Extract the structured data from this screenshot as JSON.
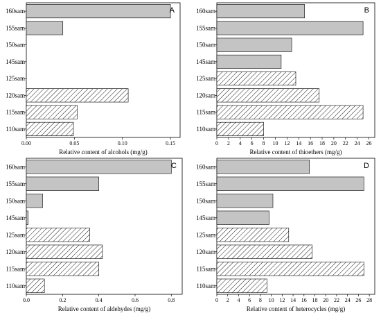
{
  "chart_data": [
    {
      "type": "bar",
      "orientation": "horizontal",
      "panel_label": "A",
      "categories": [
        "160sam",
        "155sam",
        "150sam",
        "145sam",
        "125sam",
        "120sam",
        "115sam",
        "110sam"
      ],
      "values": [
        0.15,
        0.038,
        0,
        0,
        0,
        0.106,
        0.053,
        0.049
      ],
      "xlabel": "Relative content of  alcohols (mg/g)",
      "xlim": [
        0,
        0.16
      ],
      "xticks": [
        0.0,
        0.05,
        0.1,
        0.15
      ],
      "xtick_labels": [
        "0.00",
        "0.05",
        "0.10",
        "0.15"
      ]
    },
    {
      "type": "bar",
      "orientation": "horizontal",
      "panel_label": "B",
      "categories": [
        "160sam",
        "155sam",
        "150sam",
        "145sam",
        "125sam",
        "120sam",
        "115sam",
        "110sam"
      ],
      "values": [
        15.0,
        25.0,
        12.8,
        11.0,
        13.5,
        17.5,
        25.0,
        8.0
      ],
      "xlabel": "Relative content of thioethers (mg/g)",
      "xlim": [
        0,
        27
      ],
      "xticks": [
        0,
        2,
        4,
        6,
        8,
        10,
        12,
        14,
        16,
        18,
        20,
        22,
        24,
        26
      ],
      "xtick_labels": [
        "0",
        "2",
        "4",
        "6",
        "8",
        "10",
        "12",
        "14",
        "16",
        "18",
        "20",
        "22",
        "24",
        "26"
      ]
    },
    {
      "type": "bar",
      "orientation": "horizontal",
      "panel_label": "C",
      "categories": [
        "160sam",
        "155sam",
        "150sam",
        "145sam",
        "125sam",
        "120sam",
        "115sam",
        "110sam"
      ],
      "values": [
        0.8,
        0.4,
        0.09,
        0.01,
        0.35,
        0.42,
        0.4,
        0.1
      ],
      "xlabel": "Relative content of  aldehydes (mg/g)",
      "xlim": [
        0,
        0.86
      ],
      "xticks": [
        0.0,
        0.2,
        0.4,
        0.6,
        0.8
      ],
      "xtick_labels": [
        "0.0",
        "0.2",
        "0.4",
        "0.6",
        "0.8"
      ]
    },
    {
      "type": "bar",
      "orientation": "horizontal",
      "panel_label": "D",
      "categories": [
        "160sam",
        "155sam",
        "150sam",
        "145sam",
        "125sam",
        "120sam",
        "115sam",
        "110sam"
      ],
      "values": [
        17.0,
        27.0,
        10.3,
        9.6,
        13.2,
        17.5,
        27.0,
        9.2
      ],
      "xlabel": "Relative content of  heterocycles (mg/g)",
      "xlim": [
        0,
        29
      ],
      "xticks": [
        0,
        2,
        4,
        6,
        8,
        10,
        12,
        14,
        16,
        18,
        20,
        22,
        24,
        26,
        28
      ],
      "xtick_labels": [
        "0",
        "2",
        "4",
        "6",
        "8",
        "10",
        "12",
        "14",
        "16",
        "18",
        "20",
        "22",
        "24",
        "26",
        "28"
      ]
    }
  ],
  "style": {
    "solid_fill": "#c4c4c4",
    "hatch_fill": "#ffffff",
    "stroke": "#000000",
    "solid_categories": [
      "160sam",
      "155sam",
      "150sam",
      "145sam"
    ],
    "hatched_categories": [
      "125sam",
      "120sam",
      "115sam",
      "110sam"
    ]
  }
}
